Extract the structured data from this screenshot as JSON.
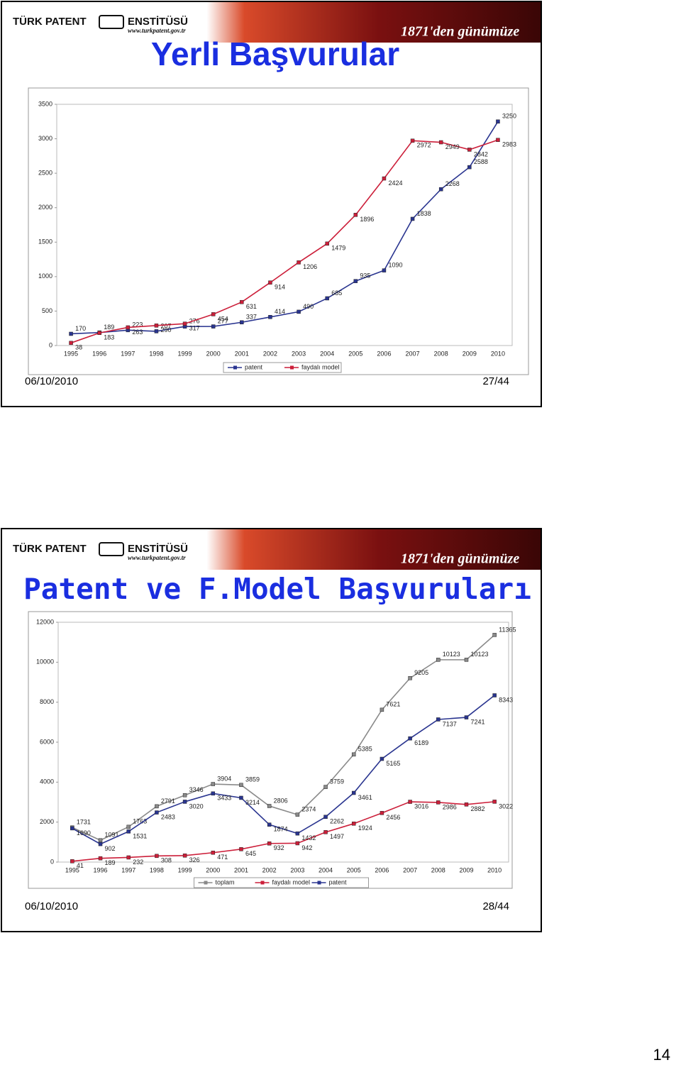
{
  "slides": [
    {
      "header": {
        "brand": "TÜRK PATENT",
        "brand2": "ENSTİTÜSÜ",
        "url": "www.turkpatent.gov.tr",
        "slogan": "1871'den günümüze"
      },
      "title": "Yerli Başvurular",
      "date": "06/10/2010",
      "page": "27/44"
    },
    {
      "header": {
        "brand": "TÜRK PATENT",
        "brand2": "ENSTİTÜSÜ",
        "url": "www.turkpatent.gov.tr",
        "slogan": "1871'den günümüze"
      },
      "title": "Patent ve F.Model Başvuruları",
      "date": "06/10/2010",
      "page": "28/44"
    }
  ],
  "chart_data": [
    {
      "type": "line",
      "categories": [
        "1995",
        "1996",
        "1997",
        "1998",
        "1999",
        "2000",
        "2001",
        "2002",
        "2003",
        "2004",
        "2005",
        "2006",
        "2007",
        "2008",
        "2009",
        "2010"
      ],
      "series": [
        {
          "name": "patent",
          "color": "#2a3590",
          "values": [
            170,
            189,
            223,
            207,
            276,
            277,
            337,
            414,
            490,
            685,
            935,
            1090,
            1838,
            2268,
            2588,
            3250
          ]
        },
        {
          "name": "faydalı model",
          "color": "#cc1f3a",
          "values": [
            38,
            183,
            263,
            290,
            317,
            454,
            631,
            914,
            1206,
            1479,
            1896,
            2424,
            2972,
            2949,
            2842,
            2983
          ]
        }
      ],
      "ylim": [
        0,
        3500
      ],
      "yticks": [
        0,
        500,
        1000,
        1500,
        2000,
        2500,
        3000,
        3500
      ],
      "grid": false,
      "legend": "bottom"
    },
    {
      "type": "line",
      "categories": [
        "1995",
        "1996",
        "1997",
        "1998",
        "1999",
        "2000",
        "2001",
        "2002",
        "2003",
        "2004",
        "2005",
        "2006",
        "2007",
        "2008",
        "2009",
        "2010"
      ],
      "series": [
        {
          "name": "toplam",
          "color": "#8a8a8a",
          "values": [
            1731,
            1091,
            1763,
            2791,
            3346,
            3904,
            3859,
            2806,
            2374,
            3759,
            5385,
            7621,
            9205,
            10123,
            10123,
            11365
          ]
        },
        {
          "name": "faydalı model",
          "color": "#cc1f3a",
          "values": [
            41,
            189,
            232,
            308,
            326,
            471,
            645,
            932,
            942,
            1497,
            1924,
            2456,
            3016,
            2986,
            2882,
            3022
          ]
        },
        {
          "name": "patent",
          "color": "#2a3590",
          "values": [
            1690,
            902,
            1531,
            2483,
            3020,
            3433,
            3214,
            1874,
            1432,
            2262,
            3461,
            5165,
            6189,
            7137,
            7241,
            8343
          ]
        }
      ],
      "ylim": [
        0,
        12000
      ],
      "yticks": [
        0,
        2000,
        4000,
        6000,
        8000,
        10000,
        12000
      ],
      "grid": false,
      "legend": "bottom"
    }
  ],
  "page_number": "14"
}
